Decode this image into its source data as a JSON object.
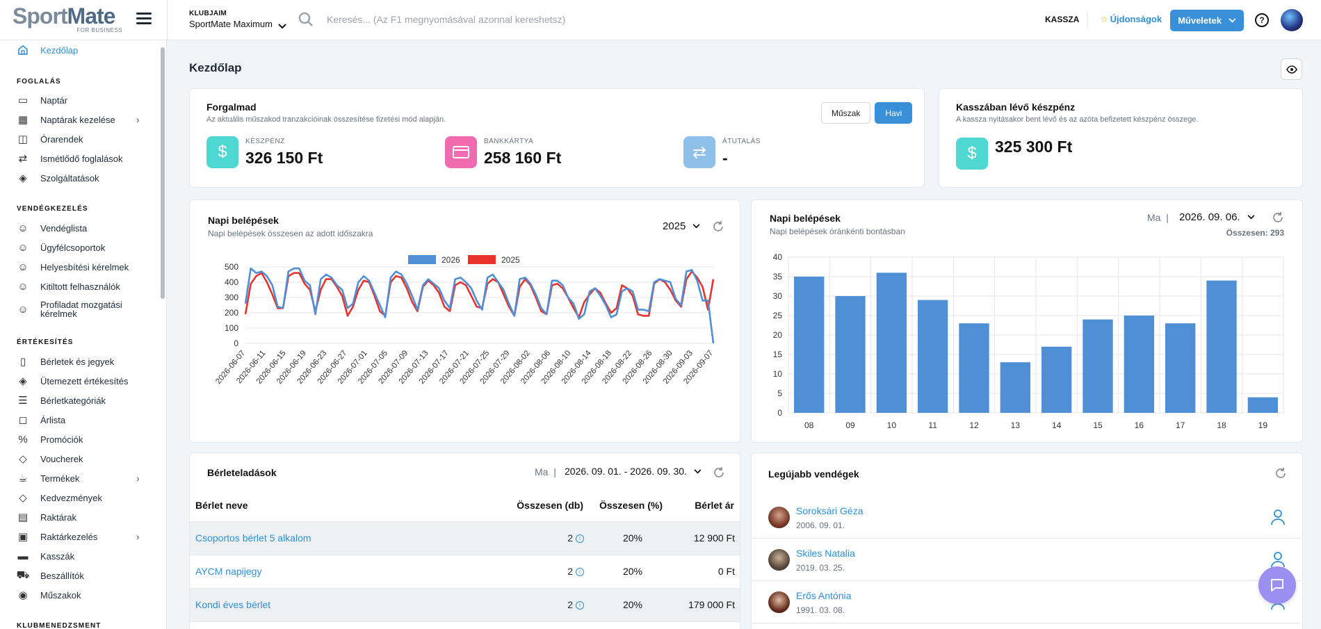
{
  "header": {
    "logo_main_a": "Sport",
    "logo_main_b": "Mate",
    "logo_sub": "FOR BUSINESS",
    "club_label": "KLUBJAIM",
    "club_value": "SportMate Maximum",
    "search_placeholder": "Keresés... (Az F1 megnyomásával azonnal kereshetsz)",
    "kassza": "KASSZA",
    "news": "Újdonságok",
    "ops": "Műveletek",
    "help": "?"
  },
  "sidebar": {
    "home": "Kezdőlap",
    "sections": {
      "foglalas": "FOGLALÁS",
      "vendeg": "VENDÉGKEZELÉS",
      "ertekesites": "ÉRTÉKESÍTÉS",
      "klub": "KLUBMENEDZSMENT"
    },
    "items": [
      "Naptár",
      "Naptárak kezelése",
      "Órarendek",
      "Ismétlődő foglalások",
      "Szolgáltatások",
      "Vendéglista",
      "Ügyfélcsoportok",
      "Helyesbítési kérelmek",
      "Kitiltott felhasználók",
      "Profiladat mozgatási",
      "kérelmek",
      "Bérletek és jegyek",
      "Ütemezett értékesítés",
      "Bérletkategóriák",
      "Árlista",
      "Promóciók",
      "Voucherek",
      "Termékek",
      "Kedvezmények",
      "Raktárak",
      "Raktárkezelés",
      "Kasszák",
      "Beszállítók",
      "Műszakok"
    ]
  },
  "main": {
    "page_title": "Kezdőlap"
  },
  "forgalmad": {
    "title": "Forgalmad",
    "subtitle": "Az aktuális műszakod tranzakcióinak összesítése fizetési mód alapján.",
    "btn_shift": "Műszak",
    "btn_monthly": "Havi",
    "stats": [
      {
        "label": "KÉSZPÉNZ",
        "value": "326 150 Ft",
        "color": "#4fd8d2"
      },
      {
        "label": "BANKKÁRTYA",
        "value": "258 160 Ft",
        "color": "#f06bb0"
      },
      {
        "label": "ÁTUTALÁS",
        "value": "-",
        "color": "#8fc0ea"
      }
    ]
  },
  "cash": {
    "title": "Kasszában lévő készpénz",
    "subtitle": "A kassza nyitásakor bent lévő és az azóta befizetett készpénz összege.",
    "value": "325 300 Ft"
  },
  "daily_period": {
    "title": "Napi belépések",
    "subtitle": "Napi belépések összesen az adott időszakra",
    "year": "2025"
  },
  "daily_hourly": {
    "title": "Napi belépések",
    "subtitle": "Napi belépések óránkénti bontásban",
    "today": "Ma",
    "date": "2026. 09. 06.",
    "total": "Összesen: 293"
  },
  "sales": {
    "title": "Bérleteladások",
    "today": "Ma",
    "range": "2026. 09. 01. - 2026. 09. 30.",
    "headers": [
      "Bérlet neve",
      "Összesen (db)",
      "Összesen (%)",
      "Bérlet ár"
    ],
    "rows": [
      {
        "name": "Csoportos bérlet 5 alkalom",
        "count": "2",
        "pct": "20%",
        "price": "12 900 Ft"
      },
      {
        "name": "AYCM napijegy",
        "count": "2",
        "pct": "20%",
        "price": "0 Ft"
      },
      {
        "name": "Kondi éves bérlet",
        "count": "2",
        "pct": "20%",
        "price": "179 000 Ft"
      }
    ]
  },
  "guests": {
    "title": "Legújabb vendégek",
    "list": [
      {
        "name": "Soroksári Géza",
        "date": "2006. 09. 01."
      },
      {
        "name": "Skiles Natalia",
        "date": "2019. 03. 25."
      },
      {
        "name": "Erős Antónia",
        "date": "1991. 03. 08."
      }
    ]
  },
  "chart_data": [
    {
      "type": "line",
      "title": "Napi belépések",
      "xlabel": "",
      "ylabel": "",
      "ylim": [
        0,
        500
      ],
      "yticks": [
        0,
        100,
        200,
        300,
        400,
        500
      ],
      "legend_position": "top-center",
      "x_tick_labels": [
        "2026-06-07",
        "2026-06-11",
        "2026-06-15",
        "2026-06-19",
        "2026-06-23",
        "2026-06-27",
        "2026-07-01",
        "2026-07-05",
        "2026-07-09",
        "2026-07-13",
        "2026-07-17",
        "2026-07-21",
        "2026-07-25",
        "2026-07-29",
        "2026-08-02",
        "2026-08-06",
        "2026-08-10",
        "2026-08-14",
        "2026-08-18",
        "2026-08-22",
        "2026-08-26",
        "2026-08-30",
        "2026-09-03",
        "2026-09-07"
      ],
      "series": [
        {
          "name": "2026",
          "color": "#4f8fd6",
          "values": [
            260,
            490,
            460,
            470,
            440,
            380,
            240,
            230,
            470,
            490,
            490,
            410,
            380,
            190,
            420,
            450,
            430,
            380,
            350,
            230,
            260,
            400,
            440,
            410,
            330,
            250,
            170,
            430,
            470,
            450,
            390,
            310,
            220,
            380,
            420,
            390,
            360,
            280,
            230,
            420,
            430,
            400,
            360,
            280,
            220,
            430,
            450,
            400,
            350,
            260,
            180,
            420,
            430,
            390,
            320,
            230,
            190,
            410,
            410,
            380,
            300,
            260,
            160,
            190,
            340,
            360,
            310,
            250,
            170,
            190,
            340,
            360,
            340,
            220,
            220,
            210,
            400,
            420,
            410,
            400,
            290,
            250,
            470,
            480,
            410,
            280,
            280,
            0
          ]
        },
        {
          "name": "2025",
          "color": "#e8322c",
          "values": [
            190,
            390,
            440,
            460,
            400,
            320,
            230,
            230,
            440,
            460,
            460,
            390,
            350,
            210,
            350,
            420,
            420,
            370,
            310,
            180,
            240,
            350,
            410,
            400,
            310,
            210,
            180,
            400,
            440,
            430,
            360,
            270,
            210,
            370,
            410,
            380,
            330,
            240,
            210,
            380,
            400,
            380,
            310,
            240,
            230,
            390,
            420,
            400,
            320,
            240,
            180,
            370,
            420,
            380,
            300,
            210,
            190,
            380,
            390,
            360,
            300,
            230,
            170,
            270,
            320,
            360,
            330,
            260,
            200,
            230,
            380,
            360,
            310,
            190,
            180,
            180,
            390,
            420,
            400,
            350,
            280,
            240,
            420,
            470,
            430,
            370,
            220,
            420
          ]
        }
      ]
    },
    {
      "type": "bar",
      "title": "Napi belépések",
      "categories": [
        "08",
        "09",
        "10",
        "11",
        "12",
        "13",
        "14",
        "15",
        "16",
        "17",
        "18",
        "19"
      ],
      "values": [
        35,
        30,
        36,
        29,
        23,
        13,
        17,
        24,
        25,
        23,
        34,
        4
      ],
      "ylim": [
        0,
        40
      ],
      "yticks": [
        0,
        5,
        10,
        15,
        20,
        25,
        30,
        35,
        40
      ],
      "color": "#4f8fd6"
    }
  ]
}
